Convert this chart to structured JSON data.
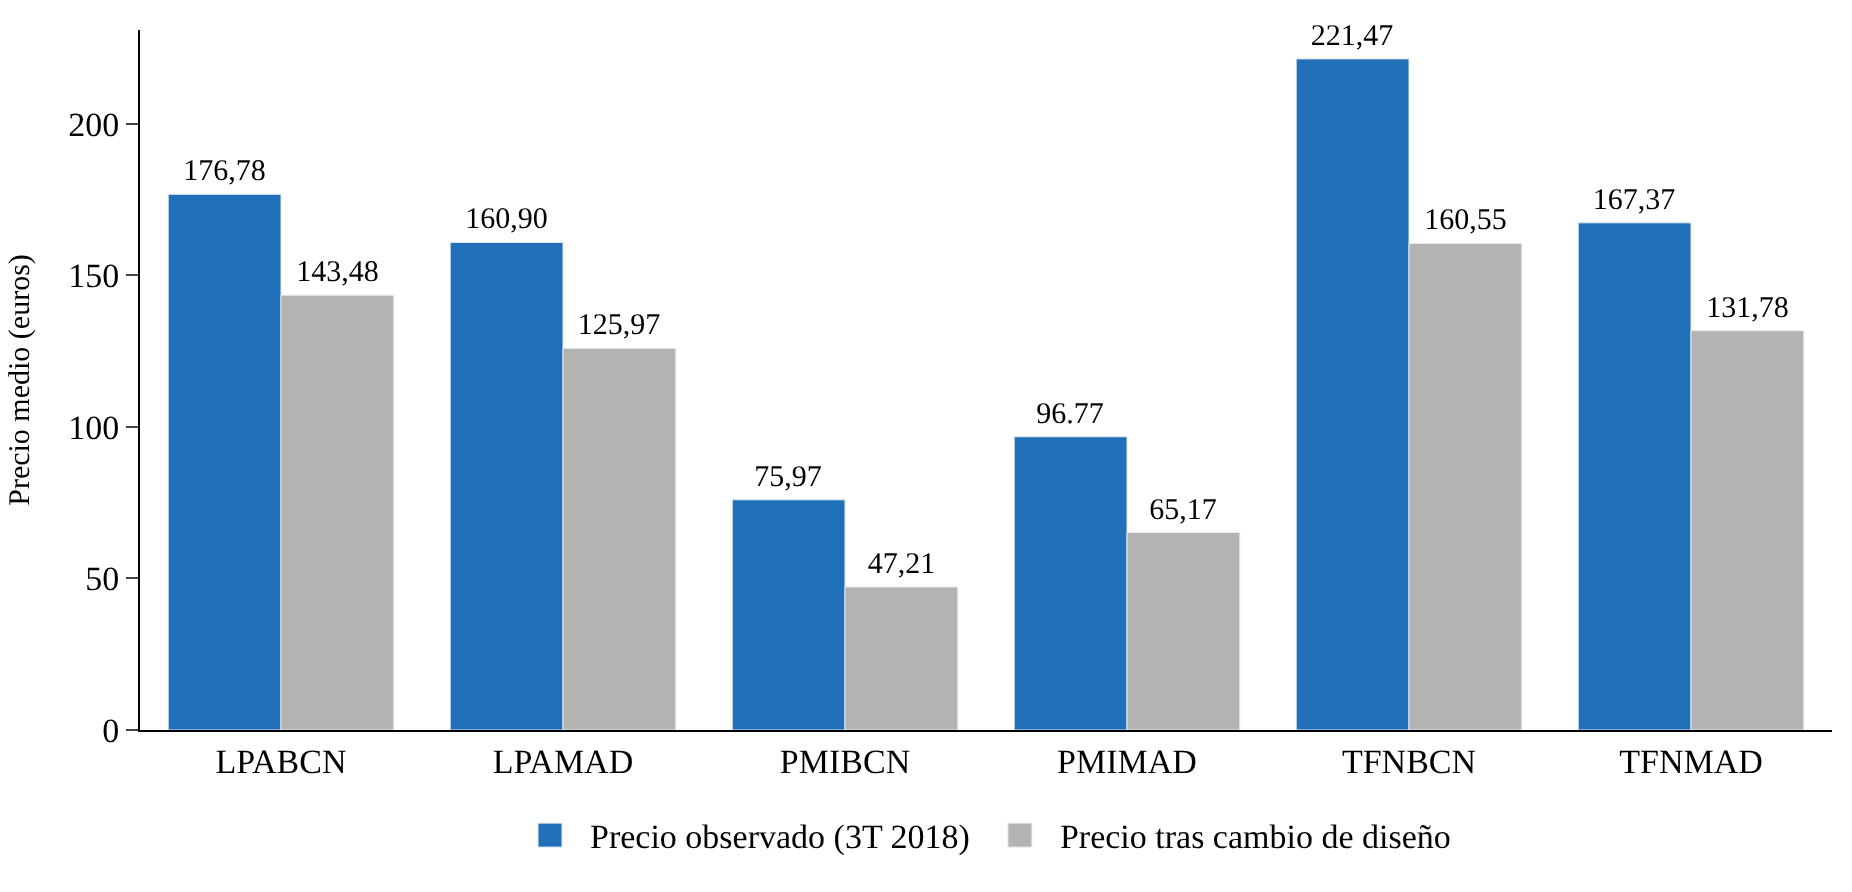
{
  "chart_data": {
    "type": "bar",
    "ylabel": "Precio medio (euros)",
    "categories": [
      "LPABCN",
      "LPAMAD",
      "PMIBCN",
      "PMIMAD",
      "TFNBCN",
      "TFNMAD"
    ],
    "series": [
      {
        "name": "Precio observado (3T 2018)",
        "color": "#1f70b9",
        "values": [
          176.78,
          160.9,
          75.97,
          96.77,
          221.47,
          167.37
        ],
        "value_labels": [
          "176,78",
          "160,90",
          "75,97",
          "96.77",
          "221,47",
          "167,37"
        ]
      },
      {
        "name": "Precio tras cambio de diseño",
        "color": "#b3b3b3",
        "values": [
          143.48,
          125.97,
          47.21,
          65.17,
          160.55,
          131.78
        ],
        "value_labels": [
          "143,48",
          "125,97",
          "47,21",
          "65,17",
          "160,55",
          "131,78"
        ]
      }
    ],
    "ylim": [
      0,
      231
    ],
    "yticks": [
      0,
      50,
      100,
      150,
      200
    ],
    "legend": "bottom"
  }
}
